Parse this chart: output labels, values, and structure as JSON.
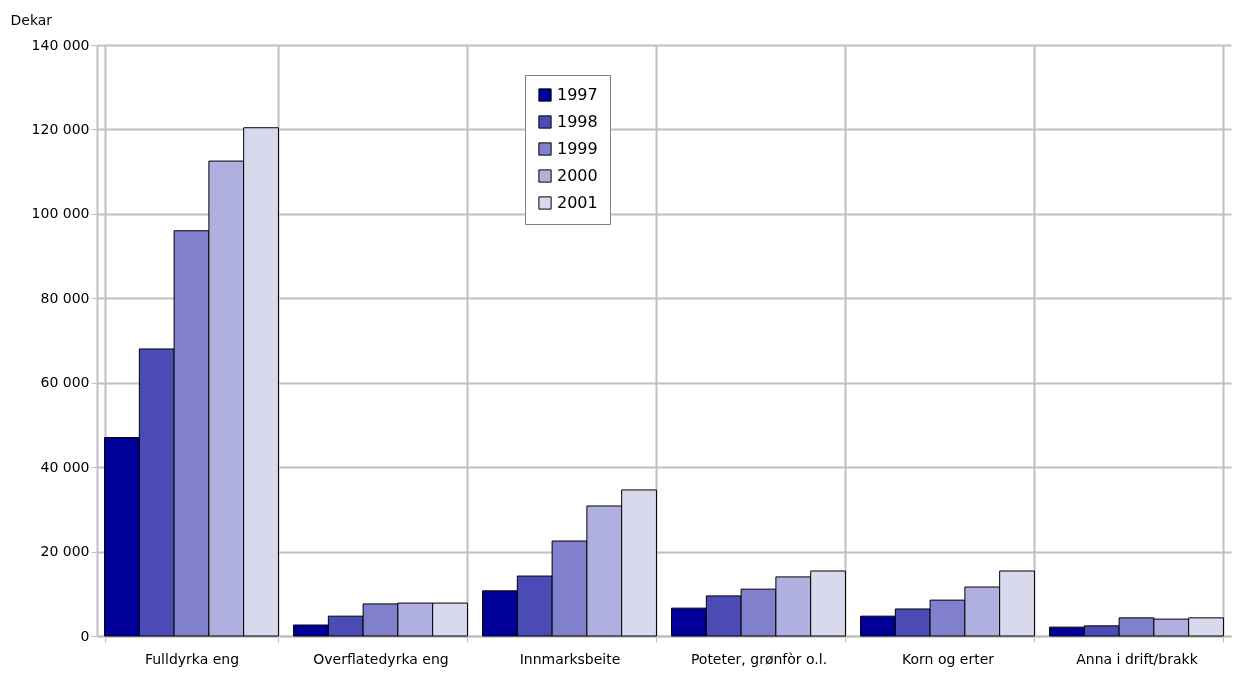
{
  "chart_data": {
    "type": "bar",
    "ylabel": "Dekar",
    "categories": [
      "Fulldyrka eng",
      "Overflatedyrka eng",
      "Innmarksbeite",
      "Poteter, grønfòr o.l.",
      "Korn og erter",
      "Anna i drift/brakk"
    ],
    "series": [
      {
        "name": "1997",
        "color": "#000099",
        "values": [
          47000,
          2600,
          10700,
          6600,
          4700,
          2100
        ]
      },
      {
        "name": "1998",
        "color": "#4b4bb5",
        "values": [
          68000,
          4700,
          14200,
          9500,
          6400,
          2400
        ]
      },
      {
        "name": "1999",
        "color": "#8080cc",
        "values": [
          96000,
          7600,
          22500,
          11100,
          8500,
          4300
        ]
      },
      {
        "name": "2000",
        "color": "#b0b0e0",
        "values": [
          112500,
          7800,
          30800,
          14000,
          11600,
          4000
        ]
      },
      {
        "name": "2001",
        "color": "#d9d9ee",
        "values": [
          120400,
          7800,
          34600,
          15400,
          15400,
          4300
        ]
      }
    ],
    "ylim": [
      0,
      140000
    ],
    "yticks": [
      {
        "value": 0,
        "label": "0"
      },
      {
        "value": 20000,
        "label": "20 000"
      },
      {
        "value": 40000,
        "label": "40 000"
      },
      {
        "value": 60000,
        "label": "60 000"
      },
      {
        "value": 80000,
        "label": "80 000"
      },
      {
        "value": 100000,
        "label": "100 000"
      },
      {
        "value": 120000,
        "label": "120 000"
      },
      {
        "value": 140000,
        "label": "140 000"
      }
    ],
    "grid": true,
    "legend": "top"
  }
}
